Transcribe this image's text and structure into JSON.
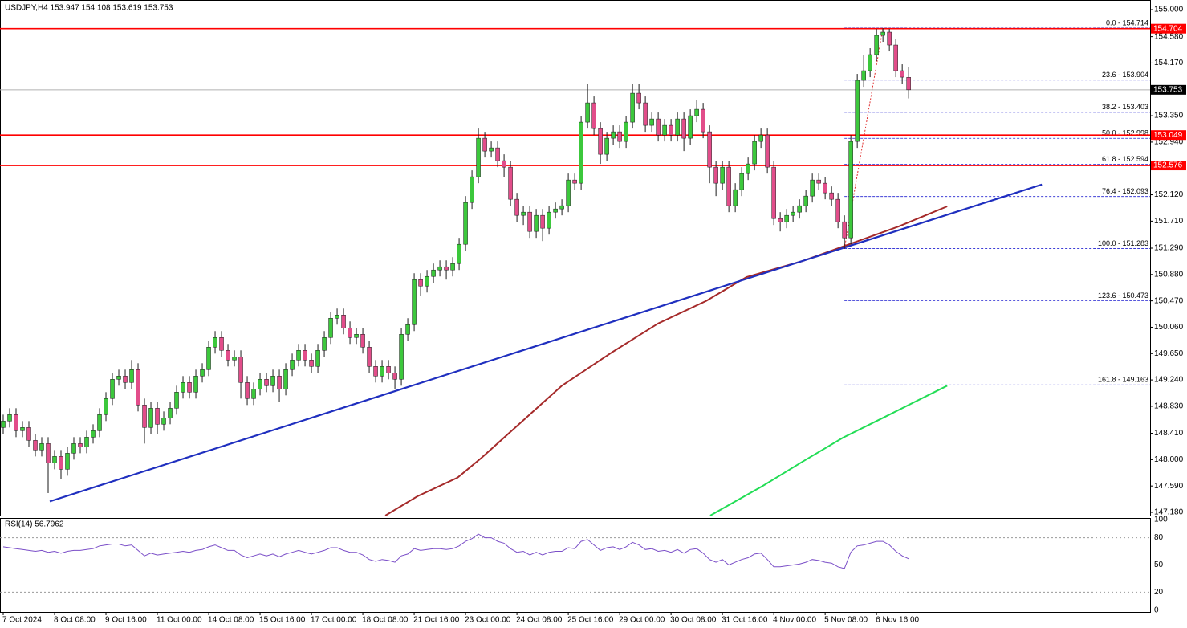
{
  "chart_data": {
    "type": "candlestick",
    "title": "USDJPY,H4  153.947 154.108 153.619 153.753",
    "categories": [
      "7 Oct 2024",
      null,
      null,
      null,
      null,
      null,
      null,
      null,
      "8 Oct 08:00",
      null,
      null,
      null,
      null,
      null,
      null,
      null,
      "9 Oct 16:00",
      null,
      null,
      null,
      null,
      null,
      null,
      null,
      "11 Oct 00:00",
      null,
      null,
      null,
      null,
      null,
      null,
      null,
      "14 Oct 08:00",
      null,
      null,
      null,
      null,
      null,
      null,
      null,
      "15 Oct 16:00",
      null,
      null,
      null,
      null,
      null,
      null,
      null,
      "17 Oct 00:00",
      null,
      null,
      null,
      null,
      null,
      null,
      null,
      "18 Oct 08:00",
      null,
      null,
      null,
      null,
      null,
      null,
      null,
      "21 Oct 16:00",
      null,
      null,
      null,
      null,
      null,
      null,
      null,
      "23 Oct 00:00",
      null,
      null,
      null,
      null,
      null,
      null,
      null,
      "24 Oct 08:00",
      null,
      null,
      null,
      null,
      null,
      null,
      null,
      "25 Oct 16:00",
      null,
      null,
      null,
      null,
      null,
      null,
      null,
      "29 Oct 00:00",
      null,
      null,
      null,
      null,
      null,
      null,
      null,
      "30 Oct 08:00",
      null,
      null,
      null,
      null,
      null,
      null,
      null,
      "31 Oct 16:00",
      null,
      null,
      null,
      null,
      null,
      null,
      null,
      "4 Nov 00:00",
      null,
      null,
      null,
      null,
      null,
      null,
      null,
      "5 Nov 08:00",
      null,
      null,
      null,
      null,
      null,
      null,
      null,
      "6 Nov 16:00",
      null,
      null,
      null,
      null,
      null
    ],
    "open": [
      148.5,
      148.6,
      148.7,
      148.45,
      148.5,
      148.3,
      148.15,
      148.25,
      147.95,
      148.05,
      147.85,
      148.1,
      148.25,
      148.2,
      148.35,
      148.45,
      148.7,
      148.95,
      149.25,
      149.3,
      149.2,
      149.4,
      148.85,
      148.5,
      148.8,
      148.55,
      148.65,
      148.8,
      149.05,
      149.2,
      149.05,
      149.3,
      149.4,
      149.75,
      149.9,
      149.7,
      149.55,
      149.6,
      149.2,
      148.95,
      149.1,
      149.25,
      149.15,
      149.3,
      149.1,
      149.4,
      149.55,
      149.7,
      149.55,
      149.45,
      149.7,
      149.9,
      150.2,
      150.25,
      150.05,
      149.9,
      149.95,
      149.75,
      149.45,
      149.3,
      149.45,
      149.35,
      149.25,
      149.95,
      150.1,
      150.8,
      150.7,
      150.85,
      150.95,
      151.0,
      150.95,
      151.05,
      151.35,
      152.0,
      152.4,
      153.0,
      152.8,
      152.85,
      152.65,
      152.55,
      152.05,
      151.8,
      151.85,
      151.55,
      151.8,
      151.6,
      151.85,
      151.9,
      151.95,
      152.35,
      152.3,
      153.25,
      153.55,
      153.15,
      152.75,
      153.0,
      153.1,
      152.95,
      153.25,
      153.7,
      153.55,
      153.2,
      153.3,
      153.05,
      153.2,
      153.05,
      153.3,
      153.0,
      153.35,
      153.45,
      153.1,
      152.55,
      152.3,
      152.55,
      151.95,
      152.2,
      152.45,
      152.6,
      152.95,
      153.05,
      152.55,
      151.75,
      151.7,
      151.8,
      151.85,
      151.95,
      152.1,
      152.35,
      152.3,
      152.15,
      152.05,
      151.7,
      151.45,
      152.95,
      153.9,
      154.05,
      154.3,
      154.6,
      154.65,
      154.45,
      154.05,
      153.947
    ],
    "high": [
      148.7,
      148.8,
      148.8,
      148.6,
      148.6,
      148.4,
      148.35,
      148.35,
      148.15,
      148.15,
      148.2,
      148.35,
      148.35,
      148.45,
      148.55,
      148.8,
      149.05,
      149.35,
      149.4,
      149.4,
      149.55,
      149.5,
      148.95,
      148.9,
      148.9,
      148.75,
      148.9,
      149.15,
      149.3,
      149.3,
      149.4,
      149.5,
      149.85,
      150.0,
      150.0,
      149.8,
      149.7,
      149.7,
      149.3,
      149.2,
      149.35,
      149.35,
      149.4,
      149.4,
      149.5,
      149.65,
      149.8,
      149.8,
      149.65,
      149.8,
      150.0,
      150.3,
      150.35,
      150.35,
      150.15,
      150.05,
      150.05,
      149.85,
      149.55,
      149.55,
      149.55,
      149.45,
      150.05,
      150.2,
      150.9,
      150.9,
      150.95,
      151.05,
      151.1,
      151.1,
      151.15,
      151.45,
      152.1,
      152.5,
      153.15,
      153.1,
      152.95,
      152.95,
      152.75,
      152.65,
      152.15,
      151.95,
      151.95,
      151.9,
      151.9,
      151.95,
      152.0,
      152.05,
      152.45,
      152.45,
      153.35,
      153.85,
      153.65,
      153.25,
      153.1,
      153.2,
      153.2,
      153.35,
      153.85,
      153.85,
      153.65,
      153.4,
      153.4,
      153.3,
      153.3,
      153.4,
      153.4,
      153.45,
      153.6,
      153.55,
      153.2,
      152.65,
      152.65,
      152.65,
      152.3,
      152.55,
      152.7,
      153.05,
      153.15,
      153.15,
      152.65,
      151.85,
      151.9,
      151.95,
      152.05,
      152.2,
      152.45,
      152.45,
      152.4,
      152.25,
      152.15,
      151.8,
      153.05,
      154.0,
      154.3,
      154.4,
      154.7,
      154.71,
      154.7,
      154.55,
      154.15,
      154.108
    ],
    "low": [
      148.4,
      148.5,
      148.35,
      148.35,
      148.2,
      148.05,
      148.05,
      147.48,
      147.85,
      147.7,
      147.75,
      148.0,
      148.1,
      148.1,
      148.25,
      148.35,
      148.6,
      148.85,
      149.15,
      149.1,
      149.1,
      148.75,
      148.25,
      148.4,
      148.4,
      148.45,
      148.55,
      148.7,
      148.95,
      148.95,
      148.95,
      149.2,
      149.3,
      149.65,
      149.6,
      149.45,
      149.45,
      148.95,
      148.85,
      148.85,
      149.0,
      149.05,
      149.05,
      148.9,
      149.0,
      149.3,
      149.45,
      149.45,
      149.35,
      149.35,
      149.6,
      149.8,
      150.1,
      149.95,
      149.8,
      149.8,
      149.65,
      149.35,
      149.2,
      149.2,
      149.25,
      149.1,
      149.15,
      149.85,
      150.0,
      150.55,
      150.6,
      150.75,
      150.85,
      150.8,
      150.85,
      150.95,
      151.25,
      151.9,
      152.3,
      152.7,
      152.7,
      152.55,
      152.4,
      151.95,
      151.7,
      151.65,
      151.45,
      151.45,
      151.4,
      151.5,
      151.75,
      151.8,
      151.85,
      152.2,
      152.2,
      153.15,
      153.05,
      152.6,
      152.65,
      152.9,
      152.85,
      152.85,
      153.15,
      153.45,
      153.1,
      153.1,
      152.95,
      152.95,
      152.95,
      152.95,
      152.8,
      152.9,
      153.25,
      153.0,
      152.3,
      152.1,
      152.2,
      151.85,
      151.85,
      152.1,
      152.35,
      152.5,
      152.85,
      152.45,
      151.65,
      151.55,
      151.6,
      151.7,
      151.75,
      151.85,
      152.0,
      152.2,
      152.05,
      151.95,
      151.6,
      151.28,
      151.35,
      152.85,
      153.8,
      153.95,
      154.2,
      154.5,
      154.35,
      153.95,
      153.85,
      153.619
    ],
    "close": [
      148.6,
      148.7,
      148.45,
      148.5,
      148.3,
      148.15,
      148.25,
      147.95,
      148.05,
      147.85,
      148.1,
      148.25,
      148.2,
      148.35,
      148.45,
      148.7,
      148.95,
      149.25,
      149.3,
      149.2,
      149.4,
      148.85,
      148.5,
      148.8,
      148.55,
      148.65,
      148.8,
      149.05,
      149.2,
      149.05,
      149.3,
      149.4,
      149.75,
      149.9,
      149.7,
      149.55,
      149.6,
      149.2,
      148.95,
      149.1,
      149.25,
      149.15,
      149.3,
      149.1,
      149.4,
      149.55,
      149.7,
      149.55,
      149.45,
      149.7,
      149.9,
      150.2,
      150.25,
      150.05,
      149.9,
      149.95,
      149.75,
      149.45,
      149.3,
      149.45,
      149.35,
      149.25,
      149.95,
      150.1,
      150.8,
      150.7,
      150.85,
      150.95,
      151.0,
      150.95,
      151.05,
      151.35,
      152.0,
      152.4,
      153.0,
      152.8,
      152.85,
      152.65,
      152.55,
      152.05,
      151.8,
      151.85,
      151.55,
      151.8,
      151.6,
      151.85,
      151.9,
      151.95,
      152.35,
      152.3,
      153.25,
      153.55,
      153.15,
      152.75,
      153.0,
      153.1,
      152.95,
      153.25,
      153.7,
      153.55,
      153.2,
      153.3,
      153.05,
      153.2,
      153.05,
      153.3,
      153.0,
      153.35,
      153.45,
      153.1,
      152.55,
      152.3,
      152.55,
      151.95,
      152.2,
      152.45,
      152.6,
      152.95,
      153.05,
      152.55,
      151.75,
      151.7,
      151.8,
      151.85,
      151.95,
      152.1,
      152.35,
      152.3,
      152.15,
      152.05,
      151.7,
      151.45,
      152.95,
      153.9,
      154.05,
      154.3,
      154.6,
      154.65,
      154.45,
      154.05,
      153.95,
      153.753
    ],
    "colors": {
      "up": "#3cc83c",
      "down": "#e24d8a",
      "wick": "#1a1a1a"
    },
    "xlim": [
      -0.5,
      178.6
    ],
    "ylim": [
      147.13,
      155.15
    ],
    "yticks": [
      {
        "value": 155.0,
        "label": "155.000"
      },
      {
        "value": 154.58,
        "label": "154.580"
      },
      {
        "value": 154.17,
        "label": "154.170"
      },
      {
        "value": 153.35,
        "label": "153.350"
      },
      {
        "value": 152.94,
        "label": "152.940"
      },
      {
        "value": 152.12,
        "label": "152.120"
      },
      {
        "value": 151.71,
        "label": "151.710"
      },
      {
        "value": 151.29,
        "label": "151.290"
      },
      {
        "value": 150.88,
        "label": "150.880"
      },
      {
        "value": 150.47,
        "label": "150.470"
      },
      {
        "value": 150.06,
        "label": "150.060"
      },
      {
        "value": 149.65,
        "label": "149.650"
      },
      {
        "value": 149.24,
        "label": "149.240"
      },
      {
        "value": 148.83,
        "label": "148.830"
      },
      {
        "value": 148.41,
        "label": "148.410"
      },
      {
        "value": 148.0,
        "label": "148.000"
      },
      {
        "value": 147.59,
        "label": "147.590"
      },
      {
        "value": 147.18,
        "label": "147.180"
      }
    ],
    "levels": [
      {
        "value": 154.704,
        "label": "154.704",
        "color": "#ff0000"
      },
      {
        "value": 153.049,
        "label": "153.049",
        "color": "#ff0000"
      },
      {
        "value": 152.576,
        "label": "152.576",
        "color": "#ff0000"
      }
    ],
    "current": {
      "value": 153.753,
      "label": "153.753",
      "color": "#b0b0b0"
    },
    "trendline": {
      "color": "#1f2fbf",
      "x": [
        7.25,
        161.75
      ],
      "values": [
        147.35,
        152.28
      ]
    },
    "moving_averages": [
      {
        "color": "#a52a2a",
        "x": [
          59.5,
          64.5,
          70.75,
          74.5,
          80.75,
          87,
          94.5,
          102,
          109.5,
          115.75,
          124.5,
          132,
          139.5,
          147
        ],
        "values": [
          147.13,
          147.43,
          147.72,
          148.03,
          148.59,
          149.15,
          149.65,
          150.12,
          150.47,
          150.84,
          151.09,
          151.36,
          151.63,
          151.94
        ]
      },
      {
        "color": "#22dd55",
        "x": [
          110.1,
          118.25,
          124.5,
          130.75,
          137,
          147
        ],
        "values": [
          147.13,
          147.59,
          147.97,
          148.34,
          148.65,
          149.15
        ]
      }
    ],
    "fibonacci": {
      "color": "#2020d0",
      "swing_color": "#e03030",
      "swing_x": [
        131,
        137
      ],
      "swing_values": [
        151.283,
        154.714
      ],
      "levels": [
        {
          "value": 154.714,
          "label": "0.0 - 154.714"
        },
        {
          "value": 153.904,
          "label": "23.6 - 153.904"
        },
        {
          "value": 153.403,
          "label": "38.2 - 153.403"
        },
        {
          "value": 152.998,
          "label": "50.0 - 152.998"
        },
        {
          "value": 152.594,
          "label": "61.8 - 152.594"
        },
        {
          "value": 152.093,
          "label": "76.4 - 152.093"
        },
        {
          "value": 151.283,
          "label": "100.0 - 151.283"
        },
        {
          "value": 150.473,
          "label": "123.6 - 150.473"
        },
        {
          "value": 149.163,
          "label": "161.8 - 149.163"
        }
      ]
    },
    "indicator": {
      "type": "line",
      "title": "RSI(14) 56.7962",
      "color": "#7b4fc8",
      "ylim": [
        0,
        100
      ],
      "yticks": [
        100,
        80,
        50,
        20,
        0
      ],
      "values": [
        70,
        69,
        68,
        67,
        66,
        65,
        66,
        64,
        65,
        63,
        65,
        66,
        66,
        67,
        68,
        71,
        72,
        73,
        73,
        71,
        72,
        66,
        60,
        63,
        61,
        62,
        63,
        64,
        65,
        64,
        66,
        67,
        70,
        72,
        69,
        66,
        66,
        61,
        58,
        60,
        62,
        60,
        62,
        59,
        62,
        64,
        66,
        64,
        62,
        64,
        66,
        69,
        69,
        66,
        64,
        64,
        61,
        56,
        54,
        56,
        55,
        53,
        60,
        62,
        68,
        66,
        67,
        68,
        68,
        67,
        68,
        71,
        76,
        79,
        84,
        80,
        80,
        76,
        74,
        68,
        64,
        65,
        61,
        64,
        61,
        64,
        65,
        65,
        69,
        68,
        76,
        78,
        72,
        66,
        69,
        70,
        67,
        70,
        75,
        72,
        67,
        68,
        65,
        66,
        64,
        67,
        63,
        67,
        68,
        63,
        56,
        53,
        56,
        50,
        53,
        56,
        58,
        62,
        63,
        56,
        48,
        48,
        49,
        50,
        51,
        53,
        56,
        55,
        53,
        52,
        48,
        46,
        64,
        71,
        72,
        74,
        76,
        76,
        72,
        65,
        60,
        56.8
      ]
    }
  }
}
